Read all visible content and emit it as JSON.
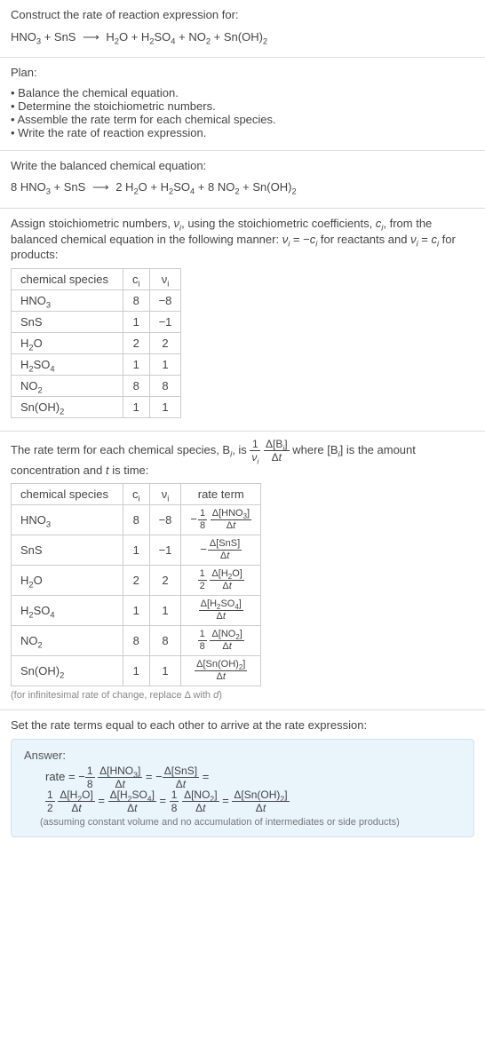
{
  "head": {
    "title": "Construct the rate of reaction expression for:",
    "eq_left": "HNO<sub>3</sub> + SnS",
    "eq_right": "H<sub>2</sub>O + H<sub>2</sub>SO<sub>4</sub> + NO<sub>2</sub> + Sn(OH)<sub>2</sub>"
  },
  "plan": {
    "title": "Plan:",
    "items": [
      "Balance the chemical equation.",
      "Determine the stoichiometric numbers.",
      "Assemble the rate term for each chemical species.",
      "Write the rate of reaction expression."
    ]
  },
  "balanced": {
    "intro": "Write the balanced chemical equation:",
    "eq_left": "8 HNO<sub>3</sub> + SnS",
    "eq_right": "2 H<sub>2</sub>O + H<sub>2</sub>SO<sub>4</sub> + 8 NO<sub>2</sub> + Sn(OH)<sub>2</sub>"
  },
  "stoich": {
    "intro": "Assign stoichiometric numbers, <span class='ital'>ν<sub>i</sub></span>, using the stoichiometric coefficients, <span class='ital'>c<sub>i</sub></span>, from the balanced chemical equation in the following manner: <span class='ital'>ν<sub>i</sub></span> = −<span class='ital'>c<sub>i</sub></span> for reactants and <span class='ital'>ν<sub>i</sub></span> = <span class='ital'>c<sub>i</sub></span> for products:",
    "headers": [
      "chemical species",
      "c<sub>i</sub>",
      "ν<sub>i</sub>"
    ],
    "rows": [
      {
        "sp": "HNO<sub>3</sub>",
        "c": "8",
        "v": "−8"
      },
      {
        "sp": "SnS",
        "c": "1",
        "v": "−1"
      },
      {
        "sp": "H<sub>2</sub>O",
        "c": "2",
        "v": "2"
      },
      {
        "sp": "H<sub>2</sub>SO<sub>4</sub>",
        "c": "1",
        "v": "1"
      },
      {
        "sp": "NO<sub>2</sub>",
        "c": "8",
        "v": "8"
      },
      {
        "sp": "Sn(OH)<sub>2</sub>",
        "c": "1",
        "v": "1"
      }
    ]
  },
  "rateterm": {
    "intro_a": "The rate term for each chemical species, B<sub><span class='ital'>i</span></sub>, is ",
    "intro_b": " where [B<sub><span class='ital'>i</span></sub>] is the amount concentration and <span class='ital'>t</span> is time:",
    "headers": [
      "chemical species",
      "c<sub>i</sub>",
      "ν<sub>i</sub>",
      "rate term"
    ],
    "rows": [
      {
        "sp": "HNO<sub>3</sub>",
        "c": "8",
        "v": "−8",
        "rt": "<span class='neg'>−</span><span class='frac'><span class='num'>1</span><span class='den'>8</span></span> <span class='frac'><span class='num'>Δ[HNO<sub>3</sub>]</span><span class='den'>Δ<span class='ital'>t</span></span></span>"
      },
      {
        "sp": "SnS",
        "c": "1",
        "v": "−1",
        "rt": "<span class='neg'>−</span><span class='frac'><span class='num'>Δ[SnS]</span><span class='den'>Δ<span class='ital'>t</span></span></span>"
      },
      {
        "sp": "H<sub>2</sub>O",
        "c": "2",
        "v": "2",
        "rt": "<span class='frac'><span class='num'>1</span><span class='den'>2</span></span> <span class='frac'><span class='num'>Δ[H<sub>2</sub>O]</span><span class='den'>Δ<span class='ital'>t</span></span></span>"
      },
      {
        "sp": "H<sub>2</sub>SO<sub>4</sub>",
        "c": "1",
        "v": "1",
        "rt": "<span class='frac'><span class='num'>Δ[H<sub>2</sub>SO<sub>4</sub>]</span><span class='den'>Δ<span class='ital'>t</span></span></span>"
      },
      {
        "sp": "NO<sub>2</sub>",
        "c": "8",
        "v": "8",
        "rt": "<span class='frac'><span class='num'>1</span><span class='den'>8</span></span> <span class='frac'><span class='num'>Δ[NO<sub>2</sub>]</span><span class='den'>Δ<span class='ital'>t</span></span></span>"
      },
      {
        "sp": "Sn(OH)<sub>2</sub>",
        "c": "1",
        "v": "1",
        "rt": "<span class='frac'><span class='num'>Δ[Sn(OH)<sub>2</sub>]</span><span class='den'>Δ<span class='ital'>t</span></span></span>"
      }
    ],
    "note": "(for infinitesimal rate of change, replace Δ with <span class='ital'>d</span>)"
  },
  "final": {
    "intro": "Set the rate terms equal to each other to arrive at the rate expression:",
    "ans_title": "Answer:",
    "line1": "rate = −<span class='frac'><span class='num'>1</span><span class='den'>8</span></span> <span class='frac'><span class='num'>Δ[HNO<sub>3</sub>]</span><span class='den'>Δ<span class='ital'>t</span></span></span> = −<span class='frac'><span class='num'>Δ[SnS]</span><span class='den'>Δ<span class='ital'>t</span></span></span> =",
    "line2": "<span class='frac'><span class='num'>1</span><span class='den'>2</span></span> <span class='frac'><span class='num'>Δ[H<sub>2</sub>O]</span><span class='den'>Δ<span class='ital'>t</span></span></span> = <span class='frac'><span class='num'>Δ[H<sub>2</sub>SO<sub>4</sub>]</span><span class='den'>Δ<span class='ital'>t</span></span></span> = <span class='frac'><span class='num'>1</span><span class='den'>8</span></span> <span class='frac'><span class='num'>Δ[NO<sub>2</sub>]</span><span class='den'>Δ<span class='ital'>t</span></span></span> = <span class='frac'><span class='num'>Δ[Sn(OH)<sub>2</sub>]</span><span class='den'>Δ<span class='ital'>t</span></span></span>",
    "assume": "(assuming constant volume and no accumulation of intermediates or side products)"
  },
  "style": {
    "accent_bg": "#eaf4fb",
    "accent_border": "#cfe3f0",
    "rule": "#dddddd",
    "tbl_border": "#cccccc",
    "note_color": "#888888"
  }
}
